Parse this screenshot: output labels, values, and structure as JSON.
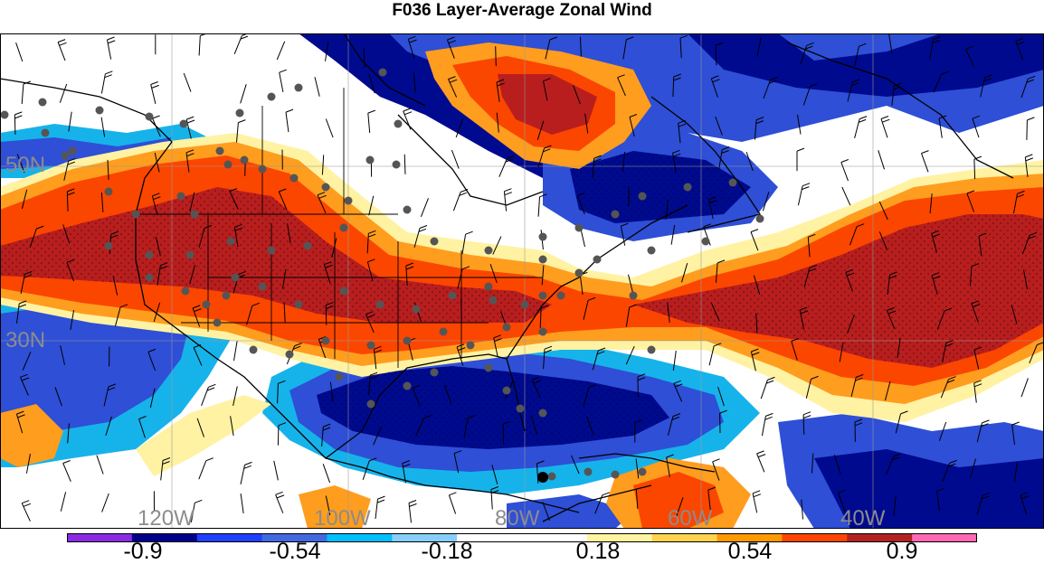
{
  "title": "F036 Layer-Average Zonal Wind",
  "map": {
    "lat_labels": [
      "50N",
      "30N"
    ],
    "lon_labels": [
      "120W",
      "100W",
      "80W",
      "60W",
      "40W"
    ]
  },
  "colorbar": {
    "levels": [
      "-0.9",
      "-0.54",
      "-0.18",
      "0.18",
      "0.54",
      "0.9"
    ],
    "colors": [
      "#8a2be2",
      "#00008b",
      "#1e40ff",
      "#4169e1",
      "#00bfff",
      "#87cefa",
      "#ffffff",
      "#ffffff",
      "#fff4a0",
      "#ffd34d",
      "#ff9900",
      "#ff4500",
      "#b22222",
      "#ff69b4"
    ]
  },
  "palette": {
    "dark_blue": "#000a8f",
    "blue": "#2e4fd6",
    "sky": "#16b3ea",
    "pale_blue": "#a6dcf6",
    "pale_yellow": "#fff2a3",
    "orange": "#ff9d1f",
    "red_orange": "#fb4600",
    "dark_red": "#b81e1e",
    "station_dot": "#555555",
    "coast": "#000000"
  }
}
